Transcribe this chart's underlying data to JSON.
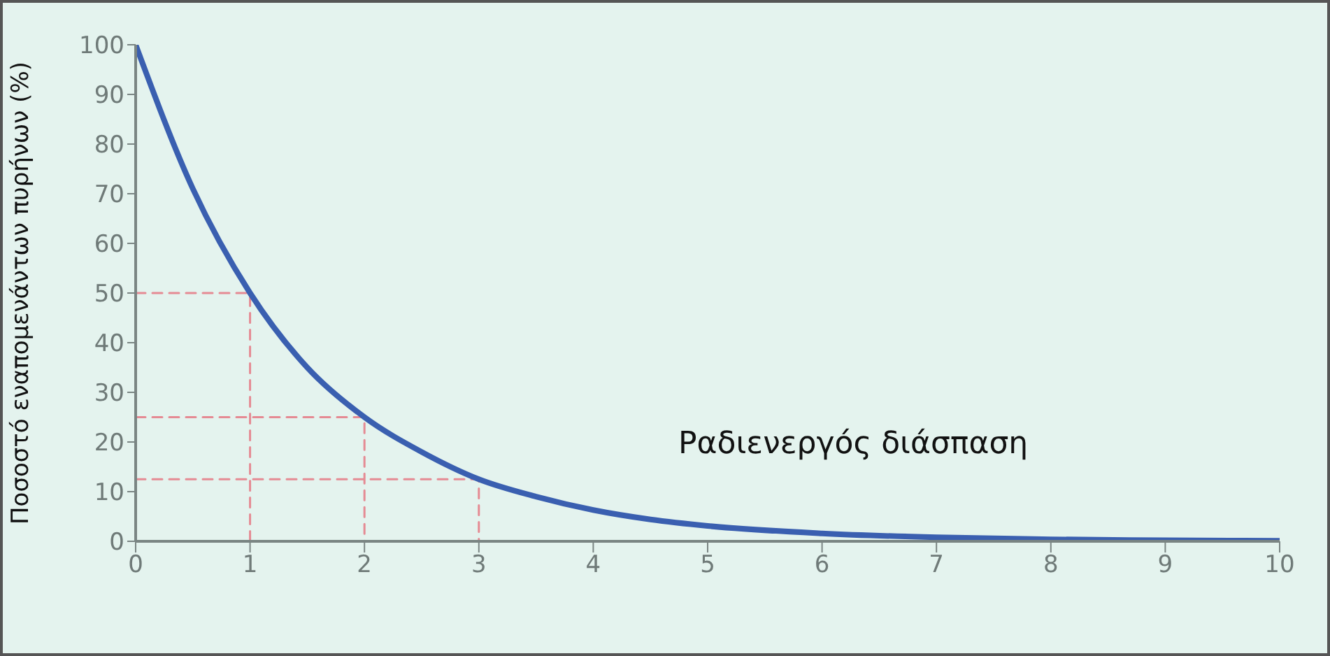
{
  "chart_data": {
    "type": "line",
    "ylabel": "Ποσοστό εναπομενάντων πυρήνων (%)",
    "annotations": [
      "Ραδιενεργός διάσπαση"
    ],
    "series": [
      {
        "color": "#3a5fb0",
        "line_style": "solid",
        "x": [
          0,
          0.5,
          1,
          1.5,
          2,
          2.5,
          3,
          3.5,
          4,
          4.5,
          5,
          6,
          7,
          8,
          9,
          10
        ],
        "values": [
          100,
          71,
          50,
          35,
          25,
          18,
          12.5,
          9,
          6.3,
          4.4,
          3.1,
          1.6,
          0.8,
          0.4,
          0.2,
          0.1
        ]
      },
      {
        "type": "line",
        "color": "#e58a93",
        "line_style": "dashed",
        "x": [
          0,
          1,
          1
        ],
        "values": [
          50,
          50,
          0
        ]
      },
      {
        "type": "line",
        "color": "#e58a93",
        "line_style": "dashed",
        "x": [
          0,
          2,
          2
        ],
        "values": [
          25,
          25,
          0
        ]
      },
      {
        "type": "line",
        "color": "#e58a93",
        "line_style": "dashed",
        "x": [
          0,
          3,
          3
        ],
        "values": [
          12.5,
          12.5,
          0
        ]
      }
    ],
    "xlim": [
      0,
      10
    ],
    "xticks": [
      0,
      1,
      2,
      3,
      4,
      5,
      6,
      7,
      8,
      9,
      10
    ],
    "ylim": [
      0,
      100
    ],
    "yticks": [
      0,
      10,
      20,
      30,
      40,
      50,
      60,
      70,
      80,
      90,
      100
    ],
    "grid": false,
    "legend": false,
    "marker": "none"
  }
}
